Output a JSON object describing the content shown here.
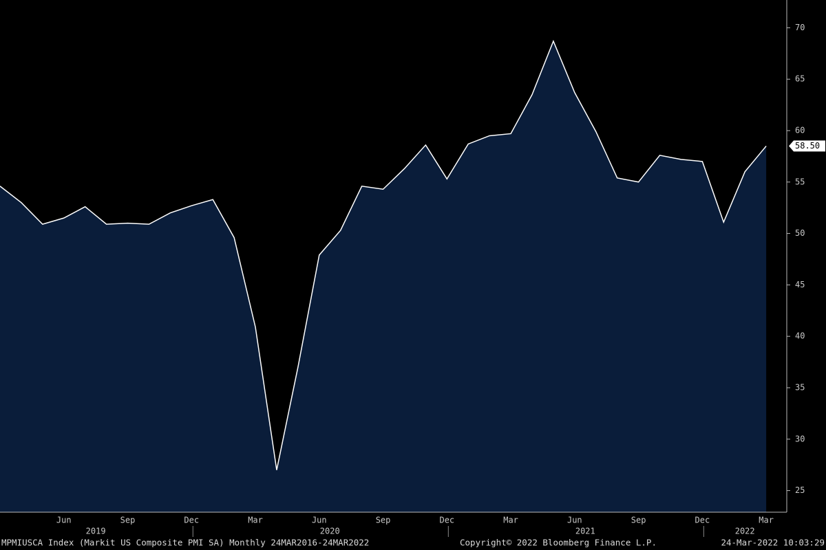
{
  "chart_data": {
    "type": "area",
    "categories": [
      null,
      null,
      null,
      "Jun",
      null,
      null,
      "Sep",
      null,
      null,
      "Dec",
      null,
      null,
      "Mar",
      null,
      null,
      "Jun",
      null,
      null,
      "Sep",
      null,
      null,
      "Dec",
      null,
      null,
      "Mar",
      null,
      null,
      "Jun",
      null,
      null,
      "Sep",
      null,
      null,
      "Dec",
      null,
      null,
      "Mar"
    ],
    "year_labels": [
      "2019",
      "2020",
      "2021",
      "2022"
    ],
    "values": [
      54.6,
      53.0,
      50.9,
      51.5,
      52.6,
      50.9,
      51.0,
      50.9,
      52.0,
      52.7,
      53.3,
      49.6,
      40.9,
      27.0,
      37.0,
      47.9,
      50.3,
      54.6,
      54.3,
      56.3,
      58.6,
      55.3,
      58.7,
      59.5,
      59.7,
      63.5,
      68.7,
      63.7,
      59.9,
      55.4,
      55.0,
      57.6,
      57.2,
      57.0,
      51.1,
      56.0,
      58.5
    ],
    "value_labels": [
      null,
      null,
      null,
      null,
      null,
      null,
      null,
      null,
      null,
      null,
      null,
      null,
      null,
      null,
      null,
      null,
      null,
      null,
      null,
      null,
      null,
      null,
      null,
      null,
      null,
      null,
      null,
      null,
      null,
      null,
      null,
      null,
      null,
      null,
      null,
      null,
      "58.50"
    ],
    "color": "#0a1d3a",
    "line_color": "#ffffff",
    "ylim": [
      22.9,
      72.7
    ],
    "yticks": [
      25,
      30,
      35,
      40,
      45,
      50,
      55,
      60,
      65,
      70
    ],
    "footer": {
      "security": "MPMIUSCA Index (Markit US Composite PMI SA)  Monthly 24MAR2016-24MAR2022",
      "copyright": "Copyright© 2022 Bloomberg Finance L.P.",
      "timestamp": "24-Mar-2022 10:03:29"
    }
  }
}
